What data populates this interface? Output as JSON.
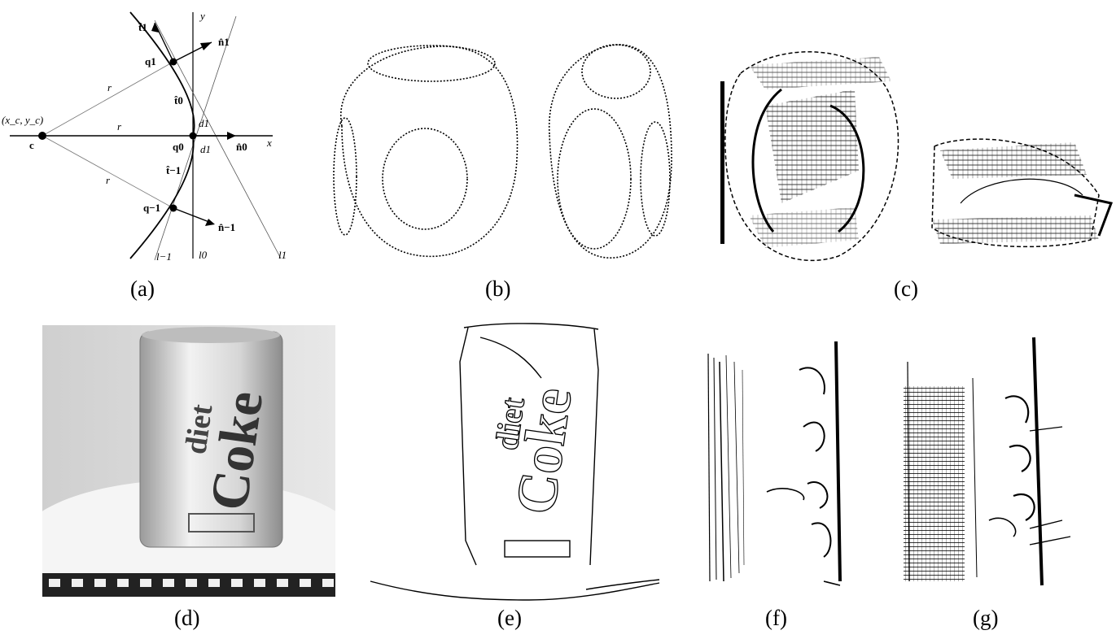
{
  "figure": {
    "captions": {
      "a": "(a)",
      "b": "(b)",
      "c": "(c)",
      "d": "(d)",
      "e": "(e)",
      "f": "(f)",
      "g": "(g)"
    },
    "panel_a": {
      "axis_x": "x",
      "axis_y": "y",
      "center": "(x_c, y_c)",
      "center_point": "c",
      "r1": "r",
      "r2": "r",
      "r3": "r",
      "q1": "q1",
      "q0": "q0",
      "qm1": "q−1",
      "t1": "t̂1",
      "t0": "t̂0",
      "tm1": "t̂−1",
      "n1": "n̂1",
      "n0": "n̂0",
      "nm1": "n̂−1",
      "d1a": "d1",
      "d1b": "d1",
      "l1": "l1",
      "l0": "l0",
      "lm1": "l−1"
    },
    "panel_d": {
      "can_text_top": "diet",
      "can_text_main": "Coke"
    },
    "panel_e": {
      "edge_text_top": "diet",
      "edge_text_main": "Coke"
    }
  }
}
